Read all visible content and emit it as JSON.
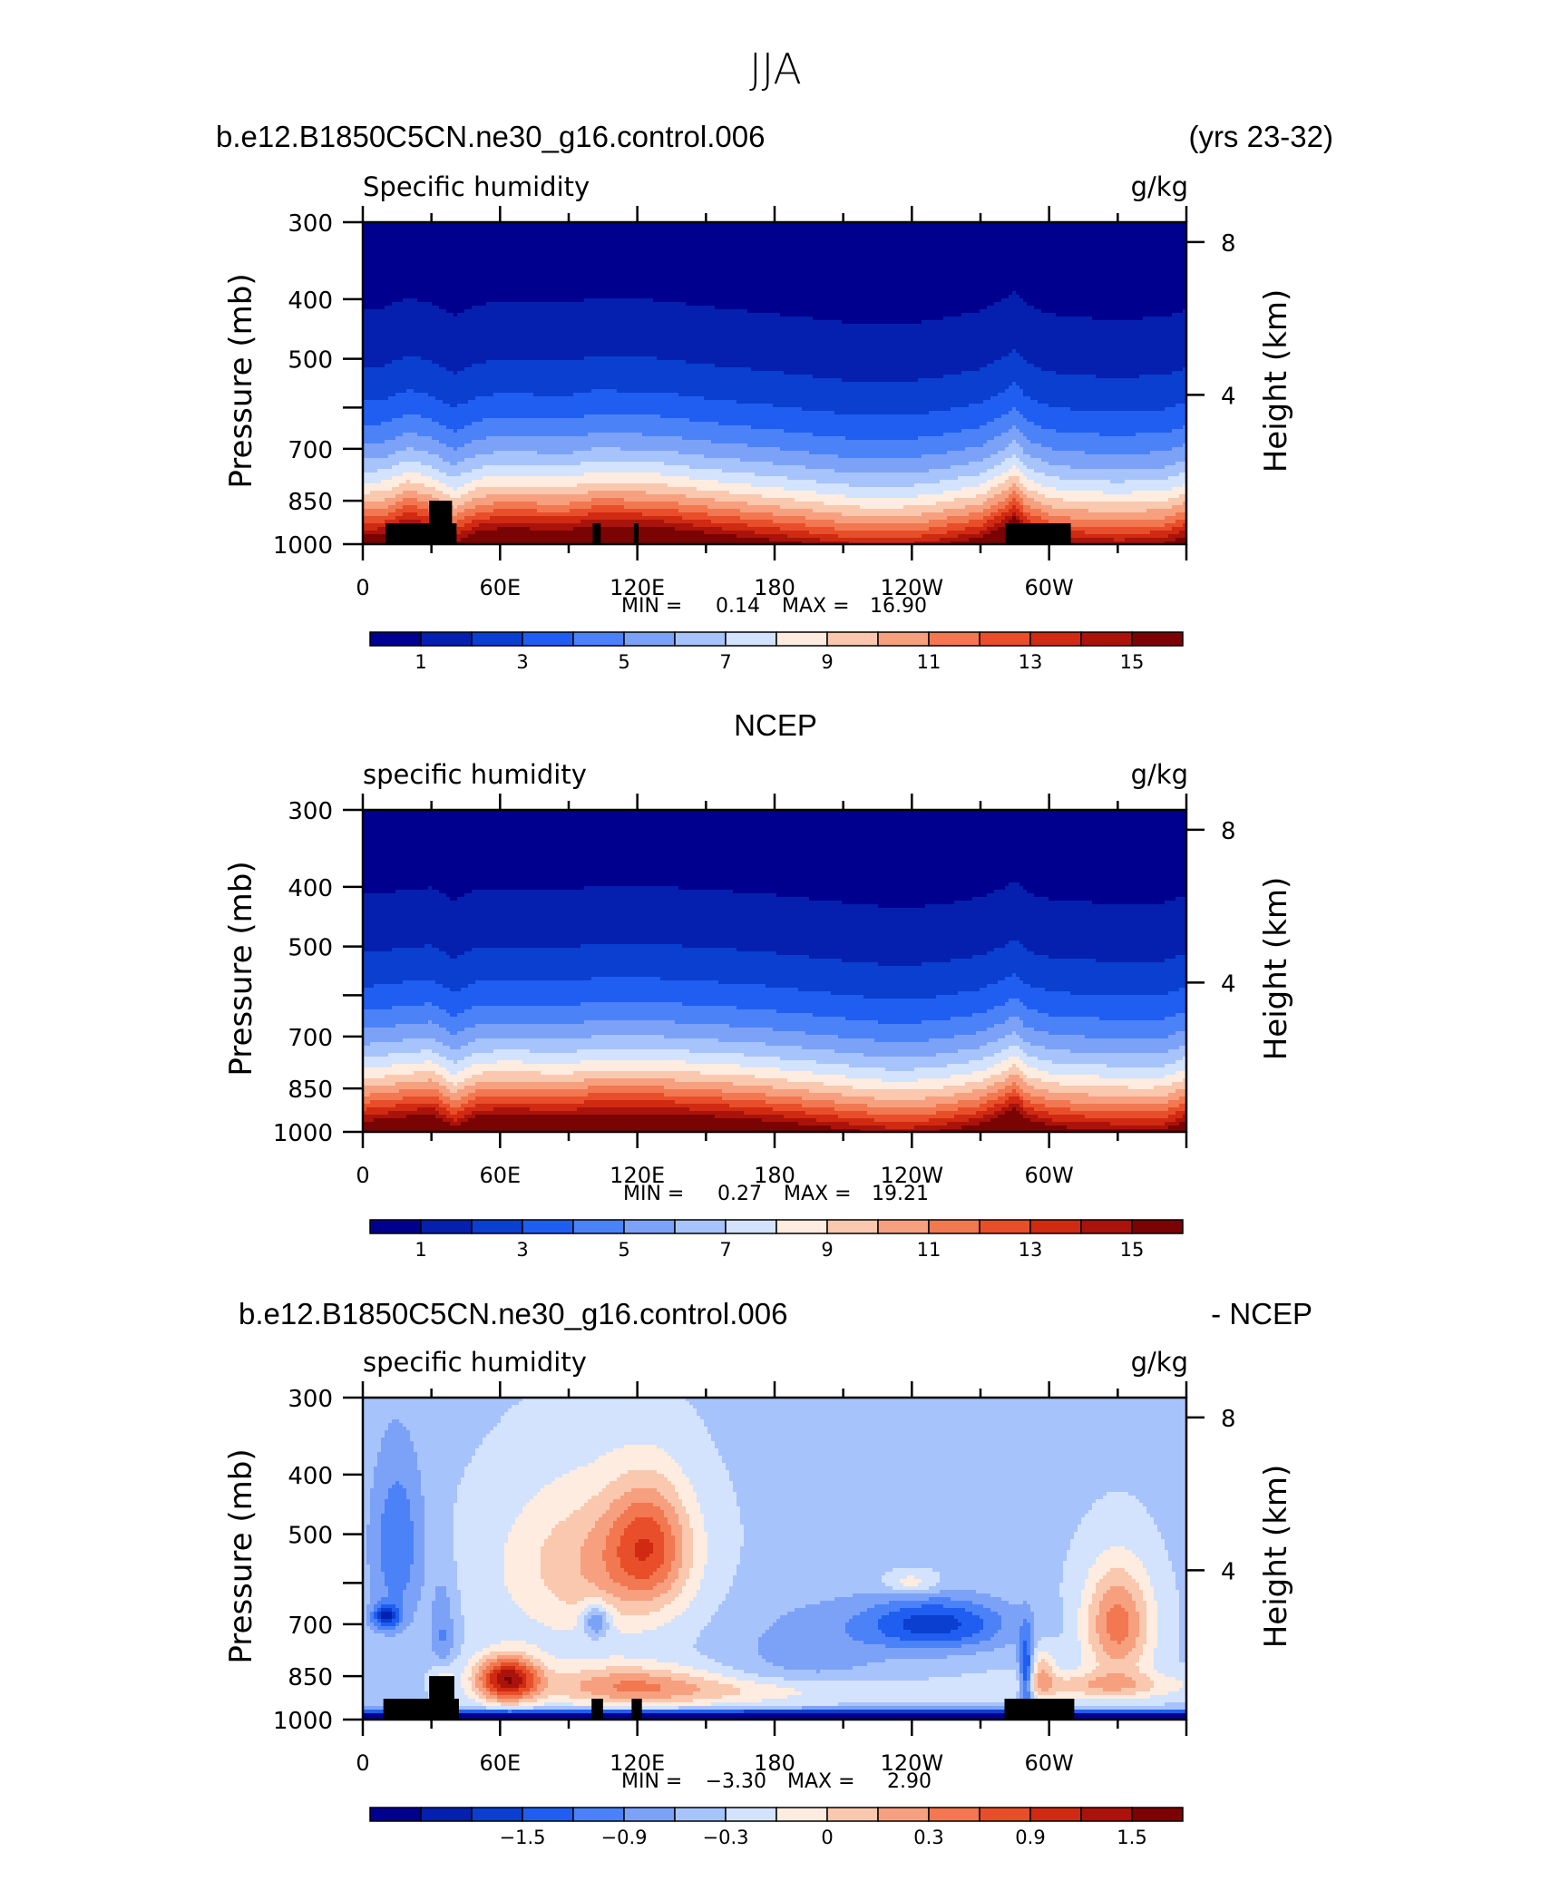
{
  "page": {
    "title": "JJA",
    "case_name": "b.e12.B1850C5CN.ne30_g16.control.006",
    "years": "(yrs 23-32)",
    "obs_title": "NCEP",
    "diff_case": "b.e12.B1850C5CN.ne30_g16.control.006",
    "diff_suffix": "- NCEP"
  },
  "colors": {
    "palette": [
      "#00008f",
      "#0520ae",
      "#0a3fd0",
      "#1f5ef0",
      "#4c82f8",
      "#7ca2f8",
      "#a7c3fb",
      "#d3e3fd",
      "#fdecdf",
      "#fac8ae",
      "#f6a07f",
      "#f17850",
      "#e84e2a",
      "#d02a12",
      "#a9130b",
      "#7a0303"
    ],
    "terrain": "#000000"
  },
  "chart_data": [
    {
      "type": "heatmap",
      "panel": "model",
      "left_title": "Specific humidity",
      "right_title": "g/kg",
      "ylabel": "Pressure (mb)",
      "ylabel_right": "Height (km)",
      "yticks": [
        "300",
        "400",
        "500",
        "600",
        "700",
        "850",
        "1000"
      ],
      "yticks_shown": [
        "300",
        "400",
        "500",
        "",
        "700",
        "850",
        "1000"
      ],
      "yticks_right": [
        "8",
        "4"
      ],
      "ylim": [
        1000,
        300
      ],
      "xticks": [
        "0",
        "60E",
        "120E",
        "180",
        "120W",
        "60W"
      ],
      "xlim": [
        0,
        360
      ],
      "stats": {
        "min_label": "MIN =",
        "min": "0.14",
        "max_label": "MAX =",
        "max": "16.90"
      },
      "colorbar_labels": [
        "1",
        "3",
        "5",
        "7",
        "9",
        "11",
        "13",
        "15"
      ],
      "levels": [
        1,
        2,
        3,
        4,
        5,
        6,
        7,
        8,
        9,
        10,
        11,
        12,
        13,
        14,
        15
      ],
      "surface": {
        "lon": [
          0,
          10,
          20,
          30,
          40,
          50,
          60,
          70,
          80,
          90,
          100,
          110,
          120,
          130,
          140,
          150,
          160,
          170,
          180,
          190,
          200,
          210,
          220,
          230,
          240,
          250,
          260,
          270,
          280,
          285,
          290,
          300,
          310,
          320,
          330,
          340,
          350,
          360
        ],
        "scale": [
          1.02,
          1.05,
          1.18,
          1.1,
          0.95,
          1.08,
          1.12,
          1.12,
          1.1,
          1.1,
          1.16,
          1.16,
          1.15,
          1.14,
          1.1,
          1.06,
          1.03,
          1.0,
          0.97,
          0.94,
          0.91,
          0.88,
          0.86,
          0.86,
          0.87,
          0.9,
          0.95,
          1.0,
          1.15,
          1.28,
          1.08,
          0.97,
          0.93,
          0.92,
          0.91,
          0.92,
          0.93,
          1.02
        ]
      },
      "terrain_blocks": [
        {
          "lon0": 10,
          "lon1": 41,
          "pressure": 925
        },
        {
          "lon0": 29,
          "lon1": 39,
          "pressure": 850
        },
        {
          "lon0": 100.5,
          "lon1": 104,
          "pressure": 925
        },
        {
          "lon0": 118.5,
          "lon1": 120.5,
          "pressure": 925
        },
        {
          "lon0": 281,
          "lon1": 309.5,
          "pressure": 925
        }
      ]
    },
    {
      "type": "heatmap",
      "panel": "obs",
      "left_title": "specific humidity",
      "right_title": "g/kg",
      "ylabel": "Pressure (mb)",
      "ylabel_right": "Height (km)",
      "yticks": [
        "300",
        "400",
        "500",
        "600",
        "700",
        "850",
        "1000"
      ],
      "yticks_shown": [
        "300",
        "400",
        "500",
        "",
        "700",
        "850",
        "1000"
      ],
      "yticks_right": [
        "8",
        "4"
      ],
      "ylim": [
        1000,
        300
      ],
      "xticks": [
        "0",
        "60E",
        "120E",
        "180",
        "120W",
        "60W"
      ],
      "xlim": [
        0,
        360
      ],
      "stats": {
        "min_label": "MIN =",
        "min": "0.27",
        "max_label": "MAX =",
        "max": "19.21"
      },
      "colorbar_labels": [
        "1",
        "3",
        "5",
        "7",
        "9",
        "11",
        "13",
        "15"
      ],
      "levels": [
        1,
        2,
        3,
        4,
        5,
        6,
        7,
        8,
        9,
        10,
        11,
        12,
        13,
        14,
        15
      ],
      "surface": {
        "lon": [
          0,
          10,
          20,
          30,
          40,
          50,
          60,
          70,
          80,
          90,
          100,
          110,
          120,
          130,
          140,
          150,
          160,
          170,
          180,
          190,
          200,
          210,
          220,
          230,
          240,
          250,
          260,
          270,
          280,
          285,
          290,
          300,
          310,
          320,
          330,
          340,
          350,
          360
        ],
        "scale": [
          1.05,
          1.08,
          1.12,
          1.15,
          0.98,
          1.12,
          1.14,
          1.14,
          1.12,
          1.12,
          1.16,
          1.16,
          1.16,
          1.16,
          1.14,
          1.12,
          1.1,
          1.08,
          1.05,
          1.02,
          0.99,
          0.96,
          0.93,
          0.91,
          0.91,
          0.93,
          0.97,
          1.02,
          1.14,
          1.24,
          1.08,
          1.0,
          0.97,
          0.96,
          0.95,
          0.94,
          0.95,
          1.05
        ]
      },
      "terrain_blocks": []
    },
    {
      "type": "heatmap",
      "panel": "difference",
      "left_title": "specific humidity",
      "right_title": "g/kg",
      "ylabel": "Pressure (mb)",
      "ylabel_right": "Height (km)",
      "yticks": [
        "300",
        "400",
        "500",
        "600",
        "700",
        "850",
        "1000"
      ],
      "yticks_shown": [
        "300",
        "400",
        "500",
        "",
        "700",
        "850",
        "1000"
      ],
      "yticks_right": [
        "8",
        "4"
      ],
      "ylim": [
        1000,
        300
      ],
      "xticks": [
        "0",
        "60E",
        "120E",
        "180",
        "120W",
        "60W"
      ],
      "xlim": [
        0,
        360
      ],
      "stats": {
        "min_label": "MIN =",
        "min": "−3.30",
        "max_label": "MAX =",
        "max": "2.90"
      },
      "colorbar_labels": [
        "−1.5",
        "−0.9",
        "−0.3",
        "0",
        "0.3",
        "0.9",
        "1.5"
      ],
      "levels": [
        -2.1,
        -1.8,
        -1.5,
        -1.2,
        -0.9,
        -0.6,
        -0.3,
        0,
        0.3,
        0.6,
        0.9,
        1.2,
        1.5,
        1.8,
        2.1
      ],
      "features": [
        {
          "lon": 63,
          "p": 860,
          "amp": 2.3,
          "w": 14,
          "h": 75
        },
        {
          "lon": 100,
          "p": 560,
          "amp": 0.9,
          "w": 40,
          "h": 170
        },
        {
          "lon": 125,
          "p": 520,
          "amp": 1.3,
          "w": 18,
          "h": 120
        },
        {
          "lon": 115,
          "p": 880,
          "amp": 1.1,
          "w": 38,
          "h": 70
        },
        {
          "lon": 102,
          "p": 690,
          "amp": -1.0,
          "w": 6,
          "h": 45
        },
        {
          "lon": 175,
          "p": 900,
          "amp": 0.6,
          "w": 60,
          "h": 50
        },
        {
          "lon": 330,
          "p": 700,
          "amp": 1.4,
          "w": 15,
          "h": 150
        },
        {
          "lon": 322,
          "p": 880,
          "amp": 0.8,
          "w": 40,
          "h": 45
        },
        {
          "lon": 297,
          "p": 840,
          "amp": 0.8,
          "w": 6,
          "h": 80
        },
        {
          "lon": 35,
          "p": 860,
          "amp": 0.8,
          "w": 5,
          "h": 60
        },
        {
          "lon": 15,
          "p": 520,
          "amp": -0.8,
          "w": 12,
          "h": 180
        },
        {
          "lon": 10,
          "p": 680,
          "amp": -1.3,
          "w": 6,
          "h": 30
        },
        {
          "lon": 35,
          "p": 740,
          "amp": -0.6,
          "w": 5,
          "h": 150
        },
        {
          "lon": 250,
          "p": 700,
          "amp": -1.3,
          "w": 32,
          "h": 70
        },
        {
          "lon": 290,
          "p": 850,
          "amp": -1.4,
          "w": 3,
          "h": 130
        },
        {
          "lon": 195,
          "p": 780,
          "amp": -0.4,
          "w": 35,
          "h": 160
        },
        {
          "lon": 240,
          "p": 600,
          "amp": 0.6,
          "w": 12,
          "h": 25
        },
        {
          "lon": 180,
          "p": 990,
          "amp": -2.8,
          "w": 500,
          "h": 22
        }
      ],
      "background": -0.35,
      "terrain_blocks": [
        {
          "lon0": 9,
          "lon1": 42,
          "pressure": 925
        },
        {
          "lon0": 29,
          "lon1": 40,
          "pressure": 850
        },
        {
          "lon0": 100,
          "lon1": 105,
          "pressure": 925
        },
        {
          "lon0": 117.5,
          "lon1": 122,
          "pressure": 925
        },
        {
          "lon0": 280.5,
          "lon1": 311,
          "pressure": 925
        }
      ]
    }
  ]
}
